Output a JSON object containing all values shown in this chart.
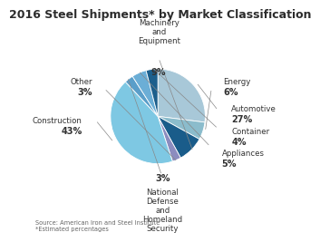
{
  "title": "2016 Steel Shipments* by Market Classification",
  "title_fontsize": 9.0,
  "source_text": "Source: American Iron and Steel Institute\n*Estimated percentages",
  "slices": [
    {
      "label": "Automotive",
      "pct": 27,
      "color": "#a8c8d8"
    },
    {
      "label": "Energy",
      "pct": 6,
      "color": "#8bbccc"
    },
    {
      "label": "Machinery\nand\nEquipment",
      "pct": 9,
      "color": "#1a5c8a"
    },
    {
      "label": "Other",
      "pct": 3,
      "color": "#8c8cbf"
    },
    {
      "label": "Construction",
      "pct": 43,
      "color": "#7ec8e3"
    },
    {
      "label": "National\nDefense\nand\nHomeland\nSecurity",
      "pct": 3,
      "color": "#5a9ec9"
    },
    {
      "label": "Appliances",
      "pct": 5,
      "color": "#6baed6"
    },
    {
      "label": "Container",
      "pct": 4,
      "color": "#1c5f8c"
    }
  ],
  "background_color": "#ffffff",
  "label_fontsize": 6.2,
  "pct_fontsize": 7.0,
  "startangle": 90
}
